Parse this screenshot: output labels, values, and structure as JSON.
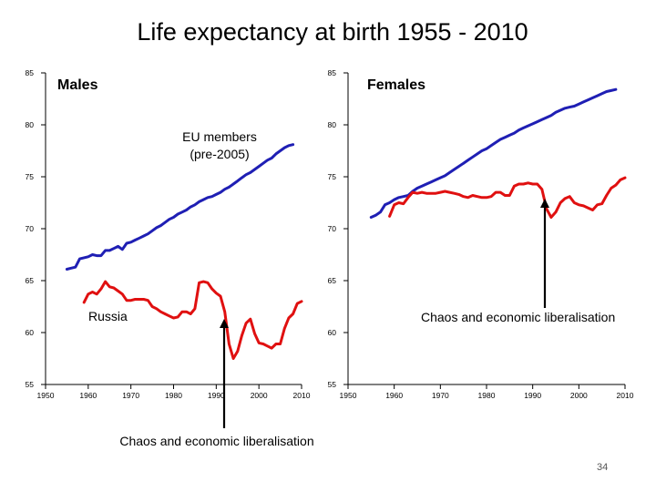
{
  "slide": {
    "title": "Life expectancy at birth 1955 - 2010",
    "page_number": "34",
    "bottom_annotation": "Chaos and economic liberalisation"
  },
  "colors": {
    "eu_line": "#1f1fb4",
    "russia_line": "#e01010",
    "axis": "#000000",
    "arrow": "#000000"
  },
  "chart_data": [
    {
      "type": "line",
      "title": "Males",
      "xlim": [
        1950,
        2010
      ],
      "ylim": [
        55,
        85
      ],
      "xticks": [
        1950,
        1960,
        1970,
        1980,
        1990,
        2000,
        2010
      ],
      "yticks": [
        55,
        60,
        65,
        70,
        75,
        80,
        85
      ],
      "grid": false,
      "annotations": [
        "EU members (pre-2005)",
        "Russia"
      ],
      "series": [
        {
          "name": "EU members (pre-2005)",
          "x": [
            1955,
            1956,
            1957,
            1958,
            1959,
            1960,
            1961,
            1962,
            1963,
            1964,
            1965,
            1966,
            1967,
            1968,
            1969,
            1970,
            1971,
            1972,
            1973,
            1974,
            1975,
            1976,
            1977,
            1978,
            1979,
            1980,
            1981,
            1982,
            1983,
            1984,
            1985,
            1986,
            1987,
            1988,
            1989,
            1990,
            1991,
            1992,
            1993,
            1994,
            1995,
            1996,
            1997,
            1998,
            1999,
            2000,
            2001,
            2002,
            2003,
            2004,
            2005,
            2006,
            2007,
            2008
          ],
          "values": [
            66.1,
            66.2,
            66.3,
            67.1,
            67.2,
            67.3,
            67.5,
            67.4,
            67.4,
            67.9,
            67.9,
            68.1,
            68.3,
            68.0,
            68.6,
            68.7,
            68.9,
            69.1,
            69.3,
            69.5,
            69.8,
            70.1,
            70.3,
            70.6,
            70.9,
            71.1,
            71.4,
            71.6,
            71.8,
            72.1,
            72.3,
            72.6,
            72.8,
            73.0,
            73.1,
            73.3,
            73.5,
            73.8,
            74.0,
            74.3,
            74.6,
            74.9,
            75.2,
            75.4,
            75.7,
            76.0,
            76.3,
            76.6,
            76.8,
            77.2,
            77.5,
            77.8,
            78.0,
            78.1
          ]
        },
        {
          "name": "Russia",
          "x": [
            1959,
            1960,
            1961,
            1962,
            1963,
            1964,
            1965,
            1966,
            1967,
            1968,
            1969,
            1970,
            1971,
            1972,
            1973,
            1974,
            1975,
            1976,
            1977,
            1978,
            1979,
            1980,
            1981,
            1982,
            1983,
            1984,
            1985,
            1986,
            1987,
            1988,
            1989,
            1990,
            1991,
            1992,
            1993,
            1994,
            1995,
            1996,
            1997,
            1998,
            1999,
            2000,
            2001,
            2002,
            2003,
            2004,
            2005,
            2006,
            2007,
            2008,
            2009,
            2010
          ],
          "values": [
            62.9,
            63.7,
            63.9,
            63.7,
            64.2,
            64.9,
            64.4,
            64.3,
            64.0,
            63.7,
            63.1,
            63.1,
            63.2,
            63.2,
            63.2,
            63.1,
            62.5,
            62.3,
            62.0,
            61.8,
            61.6,
            61.4,
            61.5,
            62.0,
            62.0,
            61.8,
            62.3,
            64.8,
            64.9,
            64.8,
            64.2,
            63.8,
            63.5,
            62.0,
            58.9,
            57.5,
            58.2,
            59.7,
            60.9,
            61.3,
            59.9,
            59.0,
            58.9,
            58.7,
            58.5,
            58.9,
            58.9,
            60.4,
            61.4,
            61.8,
            62.8,
            63.0
          ]
        }
      ]
    },
    {
      "type": "line",
      "title": "Females",
      "xlim": [
        1950,
        2010
      ],
      "ylim": [
        55,
        85
      ],
      "xticks": [
        1950,
        1960,
        1970,
        1980,
        1990,
        2000,
        2010
      ],
      "yticks": [
        55,
        60,
        65,
        70,
        75,
        80,
        85
      ],
      "grid": false,
      "annotations": [
        "Chaos and economic liberalisation"
      ],
      "series": [
        {
          "name": "EU members (pre-2005)",
          "x": [
            1955,
            1956,
            1957,
            1958,
            1959,
            1960,
            1961,
            1962,
            1963,
            1964,
            1965,
            1966,
            1967,
            1968,
            1969,
            1970,
            1971,
            1972,
            1973,
            1974,
            1975,
            1976,
            1977,
            1978,
            1979,
            1980,
            1981,
            1982,
            1983,
            1984,
            1985,
            1986,
            1987,
            1988,
            1989,
            1990,
            1991,
            1992,
            1993,
            1994,
            1995,
            1996,
            1997,
            1998,
            1999,
            2000,
            2001,
            2002,
            2003,
            2004,
            2005,
            2006,
            2007,
            2008
          ],
          "values": [
            71.1,
            71.3,
            71.6,
            72.3,
            72.5,
            72.8,
            73.0,
            73.1,
            73.2,
            73.6,
            73.9,
            74.1,
            74.3,
            74.5,
            74.7,
            74.9,
            75.1,
            75.4,
            75.7,
            76.0,
            76.3,
            76.6,
            76.9,
            77.2,
            77.5,
            77.7,
            78.0,
            78.3,
            78.6,
            78.8,
            79.0,
            79.2,
            79.5,
            79.7,
            79.9,
            80.1,
            80.3,
            80.5,
            80.7,
            80.9,
            81.2,
            81.4,
            81.6,
            81.7,
            81.8,
            82.0,
            82.2,
            82.4,
            82.6,
            82.8,
            83.0,
            83.2,
            83.3,
            83.4
          ]
        },
        {
          "name": "Russia",
          "x": [
            1959,
            1960,
            1961,
            1962,
            1963,
            1964,
            1965,
            1966,
            1967,
            1968,
            1969,
            1970,
            1971,
            1972,
            1973,
            1974,
            1975,
            1976,
            1977,
            1978,
            1979,
            1980,
            1981,
            1982,
            1983,
            1984,
            1985,
            1986,
            1987,
            1988,
            1989,
            1990,
            1991,
            1992,
            1993,
            1994,
            1995,
            1996,
            1997,
            1998,
            1999,
            2000,
            2001,
            2002,
            2003,
            2004,
            2005,
            2006,
            2007,
            2008,
            2009,
            2010
          ],
          "values": [
            71.2,
            72.3,
            72.5,
            72.4,
            73.0,
            73.5,
            73.4,
            73.5,
            73.4,
            73.4,
            73.4,
            73.5,
            73.6,
            73.5,
            73.4,
            73.3,
            73.1,
            73.0,
            73.2,
            73.1,
            73.0,
            73.0,
            73.1,
            73.5,
            73.5,
            73.2,
            73.2,
            74.1,
            74.3,
            74.3,
            74.4,
            74.3,
            74.3,
            73.8,
            71.9,
            71.1,
            71.6,
            72.5,
            72.9,
            73.1,
            72.5,
            72.3,
            72.2,
            72.0,
            71.8,
            72.3,
            72.4,
            73.2,
            73.9,
            74.2,
            74.7,
            74.9
          ]
        }
      ]
    }
  ]
}
